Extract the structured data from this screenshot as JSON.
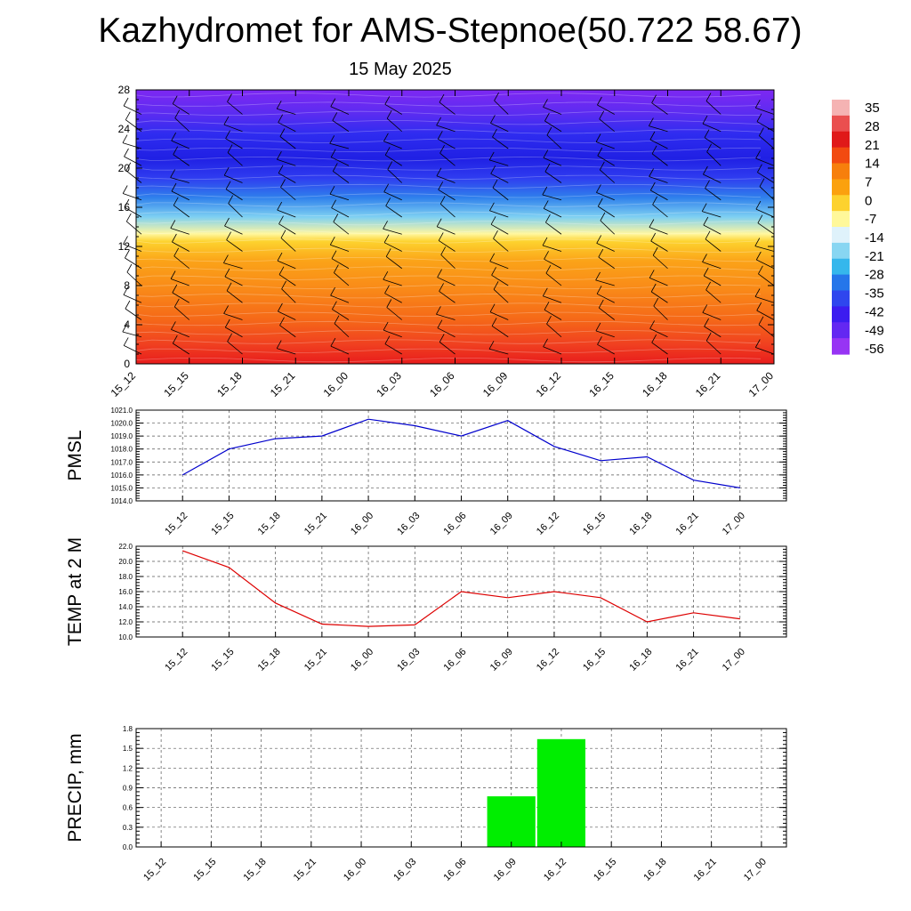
{
  "header": {
    "title": "Kazhydromet for AMS-Stepnoe(50.722 58.67)",
    "date": "15 May 2025"
  },
  "chart_data": [
    {
      "type": "heatmap",
      "name": "temperature-profile",
      "x_labels": [
        "15_12",
        "15_15",
        "15_18",
        "15_21",
        "16_00",
        "16_03",
        "16_06",
        "16_09",
        "16_12",
        "16_15",
        "16_18",
        "16_21",
        "17_00"
      ],
      "ylim": [
        0,
        28
      ],
      "y_ticks": [
        0,
        4,
        8,
        12,
        16,
        20,
        24,
        28
      ],
      "colorbar": {
        "labels": [
          "35",
          "28",
          "21",
          "14",
          "7",
          "0",
          "-7",
          "-14",
          "-21",
          "-28",
          "-35",
          "-42",
          "-49",
          "-56"
        ],
        "colors": [
          "#f5b3b3",
          "#ea4f4f",
          "#e01919",
          "#f24a10",
          "#f77f0c",
          "#fba10e",
          "#fdd22e",
          "#fff89a",
          "#dff2fb",
          "#88d6f2",
          "#35b7ec",
          "#2576ea",
          "#2f46ee",
          "#3c1cf0",
          "#6327f2",
          "#9734f4"
        ]
      },
      "bands": [
        {
          "y_top": 28,
          "color": "#7e28f2"
        },
        {
          "y_top": 25.5,
          "color": "#5a2cf1"
        },
        {
          "y_top": 23.5,
          "color": "#2f2cf0"
        },
        {
          "y_top": 21,
          "color": "#2020e4"
        },
        {
          "y_top": 19,
          "color": "#2f3cf0"
        },
        {
          "y_top": 17,
          "color": "#2f80ec"
        },
        {
          "y_top": 15,
          "color": "#7ed0f2"
        },
        {
          "y_top": 13.3,
          "color": "#fff7a0"
        },
        {
          "y_top": 12.5,
          "color": "#fdd22e"
        },
        {
          "y_top": 10.5,
          "color": "#fba318"
        },
        {
          "y_top": 7.5,
          "color": "#f98818"
        },
        {
          "y_top": 4.5,
          "color": "#f56818"
        },
        {
          "y_top": 2,
          "color": "#f04020"
        }
      ]
    },
    {
      "type": "line",
      "name": "pmsl",
      "ylabel": "PMSL",
      "x": [
        "15_12",
        "15_15",
        "15_18",
        "15_21",
        "16_00",
        "16_03",
        "16_06",
        "16_09",
        "16_12",
        "16_15",
        "16_18",
        "16_21",
        "17_00"
      ],
      "ylim": [
        1014.0,
        1021.0
      ],
      "y_ticks": [
        "1014.0",
        "1015.0",
        "1016.0",
        "1017.0",
        "1018.0",
        "1019.0",
        "1020.0",
        "1021.0"
      ],
      "color": "#0000cc",
      "values": [
        1016.0,
        1018.0,
        1018.8,
        1019.0,
        1020.3,
        1019.8,
        1019.0,
        1020.2,
        1018.2,
        1017.1,
        1017.4,
        1015.6,
        1015.0
      ]
    },
    {
      "type": "line",
      "name": "temp-2m",
      "ylabel": "TEMP at 2 M",
      "x": [
        "15_12",
        "15_15",
        "15_18",
        "15_21",
        "16_00",
        "16_03",
        "16_06",
        "16_09",
        "16_12",
        "16_15",
        "16_18",
        "16_21",
        "17_00"
      ],
      "ylim": [
        10.0,
        22.0
      ],
      "y_ticks": [
        "10.0",
        "12.0",
        "14.0",
        "16.0",
        "18.0",
        "20.0",
        "22.0"
      ],
      "color": "#dd0000",
      "values": [
        21.4,
        19.2,
        14.5,
        11.7,
        11.4,
        11.6,
        16.0,
        15.2,
        16.0,
        15.2,
        12.0,
        13.2,
        12.4
      ]
    },
    {
      "type": "bar",
      "name": "precip",
      "ylabel": "PRECIP, mm",
      "categories": [
        "15_12",
        "15_15",
        "15_18",
        "15_21",
        "16_00",
        "16_03",
        "16_06",
        "16_09",
        "16_12",
        "16_15",
        "16_18",
        "16_21",
        "17_00"
      ],
      "ylim": [
        0.0,
        1.8
      ],
      "y_ticks": [
        "0.0",
        "0.3",
        "0.6",
        "0.9",
        "1.2",
        "1.5",
        "1.8"
      ],
      "color": "#00ee00",
      "values": [
        0,
        0,
        0,
        0,
        0,
        0,
        0,
        0.77,
        1.64,
        0,
        0,
        0,
        0
      ]
    }
  ]
}
